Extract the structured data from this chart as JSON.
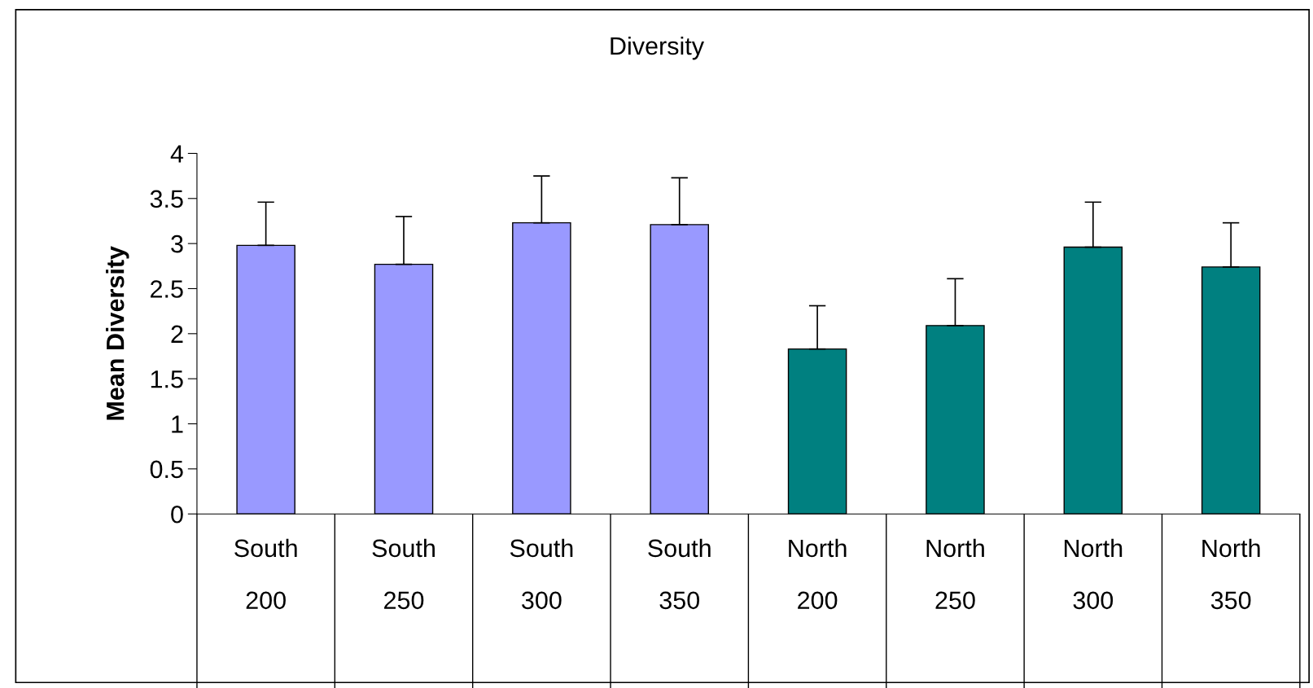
{
  "chart_data": {
    "type": "bar",
    "title": "Diversity",
    "ylabel": "Mean Diversity",
    "categories": [
      "South\n200",
      "South\n250",
      "South\n300",
      "South\n350",
      "North\n200",
      "North\n250",
      "North\n300",
      "North\n350"
    ],
    "values": [
      2.98,
      2.77,
      3.23,
      3.21,
      1.83,
      2.09,
      2.96,
      2.74
    ],
    "colors": [
      "#9999ff",
      "#9999ff",
      "#9999ff",
      "#9999ff",
      "#008080",
      "#008080",
      "#008080",
      "#008080"
    ],
    "errors": [
      [
        2.98,
        3.46
      ],
      [
        2.77,
        3.3
      ],
      [
        3.23,
        3.75
      ],
      [
        3.21,
        3.73
      ],
      [
        1.83,
        2.31
      ],
      [
        2.09,
        2.61
      ],
      [
        2.96,
        3.46
      ],
      [
        2.74,
        3.23
      ]
    ],
    "ylim": [
      0,
      4
    ],
    "yticks": [
      0,
      0.5,
      1,
      1.5,
      2,
      2.5,
      3,
      3.5,
      4
    ],
    "grid": false,
    "legend": false
  }
}
